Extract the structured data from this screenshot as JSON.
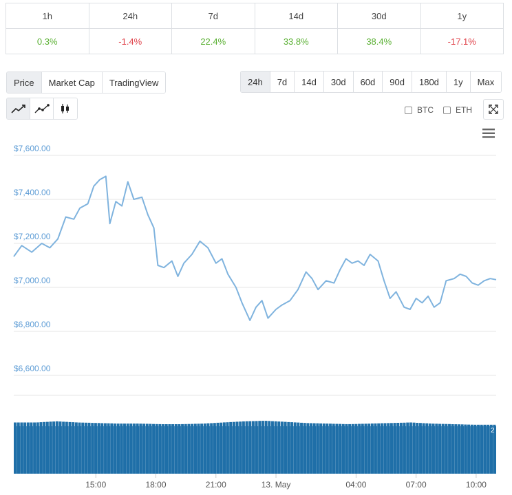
{
  "performance": {
    "periods": [
      "1h",
      "24h",
      "7d",
      "14d",
      "30d",
      "1y"
    ],
    "changes": [
      "0.3%",
      "-1.4%",
      "22.4%",
      "33.8%",
      "38.4%",
      "-17.1%"
    ],
    "colors": {
      "positive": "#5ab033",
      "negative": "#e0424a"
    }
  },
  "view_tabs": {
    "price": "Price",
    "market_cap": "Market Cap",
    "tradingview": "TradingView",
    "active": "Price"
  },
  "range_tabs": {
    "items": [
      "24h",
      "7d",
      "14d",
      "30d",
      "60d",
      "90d",
      "180d",
      "1y",
      "Max"
    ],
    "active": "24h"
  },
  "chart_types": [
    "line-chart-icon",
    "line-with-points-icon",
    "candlestick-icon"
  ],
  "compare": {
    "btc": "BTC",
    "eth": "ETH"
  },
  "chart_data": {
    "type": "line",
    "title": "",
    "currency_prefix": "$",
    "ylim": [
      6600,
      7600
    ],
    "y_ticks": [
      7600,
      7400,
      7200,
      7000,
      6800,
      6600
    ],
    "y_tick_labels": [
      "$7,600.00",
      "$7,400.00",
      "$7,200.00",
      "$7,000.00",
      "$6,800.00",
      "$6,600.00"
    ],
    "x_tick_labels": [
      "15:00",
      "18:00",
      "21:00",
      "13. May",
      "04:00",
      "07:00",
      "10:00"
    ],
    "x_tick_hours": [
      15,
      18,
      21,
      24,
      28,
      31,
      34
    ],
    "x_range_hours": [
      10.9,
      35.0
    ],
    "series": [
      {
        "name": "Price",
        "color": "#7fb3de",
        "points": [
          [
            10.9,
            7140
          ],
          [
            11.3,
            7190
          ],
          [
            11.8,
            7160
          ],
          [
            12.3,
            7200
          ],
          [
            12.7,
            7180
          ],
          [
            13.1,
            7220
          ],
          [
            13.5,
            7320
          ],
          [
            13.9,
            7310
          ],
          [
            14.2,
            7360
          ],
          [
            14.6,
            7380
          ],
          [
            14.9,
            7460
          ],
          [
            15.2,
            7490
          ],
          [
            15.5,
            7505
          ],
          [
            15.7,
            7290
          ],
          [
            16.0,
            7390
          ],
          [
            16.3,
            7370
          ],
          [
            16.6,
            7480
          ],
          [
            16.9,
            7400
          ],
          [
            17.3,
            7410
          ],
          [
            17.6,
            7330
          ],
          [
            17.9,
            7270
          ],
          [
            18.1,
            7100
          ],
          [
            18.4,
            7090
          ],
          [
            18.8,
            7120
          ],
          [
            19.1,
            7050
          ],
          [
            19.4,
            7110
          ],
          [
            19.8,
            7150
          ],
          [
            20.2,
            7210
          ],
          [
            20.6,
            7180
          ],
          [
            21.0,
            7110
          ],
          [
            21.3,
            7130
          ],
          [
            21.6,
            7060
          ],
          [
            22.0,
            7000
          ],
          [
            22.3,
            6930
          ],
          [
            22.7,
            6850
          ],
          [
            23.0,
            6910
          ],
          [
            23.3,
            6940
          ],
          [
            23.6,
            6860
          ],
          [
            24.0,
            6900
          ],
          [
            24.3,
            6920
          ],
          [
            24.7,
            6940
          ],
          [
            25.1,
            6990
          ],
          [
            25.5,
            7070
          ],
          [
            25.8,
            7040
          ],
          [
            26.1,
            6990
          ],
          [
            26.5,
            7030
          ],
          [
            26.9,
            7020
          ],
          [
            27.2,
            7080
          ],
          [
            27.5,
            7130
          ],
          [
            27.8,
            7110
          ],
          [
            28.1,
            7120
          ],
          [
            28.4,
            7100
          ],
          [
            28.7,
            7150
          ],
          [
            29.1,
            7120
          ],
          [
            29.4,
            7030
          ],
          [
            29.7,
            6950
          ],
          [
            30.0,
            6980
          ],
          [
            30.4,
            6910
          ],
          [
            30.7,
            6900
          ],
          [
            31.0,
            6950
          ],
          [
            31.3,
            6930
          ],
          [
            31.6,
            6960
          ],
          [
            31.9,
            6910
          ],
          [
            32.2,
            6930
          ],
          [
            32.5,
            7030
          ],
          [
            32.9,
            7040
          ],
          [
            33.2,
            7060
          ],
          [
            33.5,
            7050
          ],
          [
            33.8,
            7020
          ],
          [
            34.1,
            7010
          ],
          [
            34.4,
            7030
          ],
          [
            34.7,
            7040
          ],
          [
            35.0,
            7035
          ]
        ]
      }
    ],
    "volume": {
      "color": "#1f6fa8",
      "bars": 150,
      "level_profile": [
        0.9,
        0.9,
        0.92,
        0.9,
        0.89,
        0.88,
        0.88,
        0.87,
        0.87,
        0.88,
        0.9,
        0.92,
        0.93,
        0.91,
        0.89,
        0.88,
        0.87,
        0.88,
        0.89,
        0.9,
        0.88,
        0.87,
        0.86,
        0.86
      ]
    },
    "navigator_label": "2"
  }
}
